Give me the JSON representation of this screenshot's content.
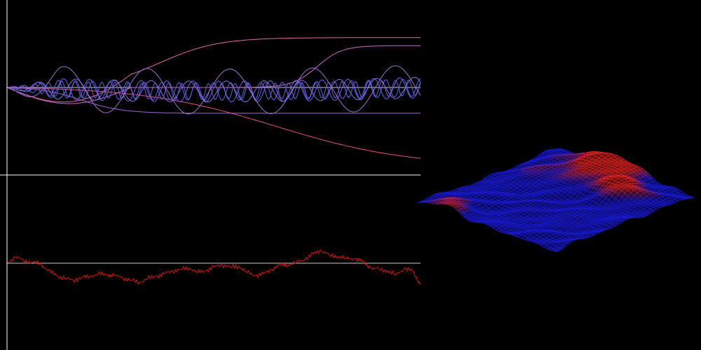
{
  "colors": {
    "background": "#000000",
    "axis": "#ffffff",
    "baseline": "#c8c8c8",
    "walk": "#dd1111",
    "surface_high": "#dd2222",
    "surface_low": "#1a1ad8"
  },
  "chart_data": [
    {
      "type": "line",
      "panel": "top-left",
      "grid": false,
      "legend": "none",
      "xlim": [
        0,
        1
      ],
      "ylim": [
        -1,
        1
      ],
      "baseline": 0,
      "series": [
        {
          "color": "#e06aa3",
          "shape": "rise",
          "amplitude": 0.62,
          "center": 0.37,
          "width": 0.07
        },
        {
          "color": "#cc66cc",
          "shape": "rise",
          "amplitude": 0.52,
          "center": 0.75,
          "width": 0.03
        },
        {
          "color": "#e0508a",
          "shape": "fall",
          "amplitude": -0.98,
          "center": 0.65,
          "width": 0.16
        },
        {
          "color": "#a060d8",
          "shape": "fall",
          "amplitude": -0.32,
          "center": 0.18,
          "width": 0.05
        },
        {
          "color": "#7060e8",
          "shape": "wave",
          "amplitude": 0.13,
          "frequency": 16,
          "phase": 0.4
        },
        {
          "color": "#5566ee",
          "shape": "wave",
          "amplitude": 0.11,
          "frequency": 24,
          "phase": 1.7
        },
        {
          "color": "#8070e0",
          "shape": "wave",
          "amplitude": 0.13,
          "frequency": 11,
          "phase": 2.6
        },
        {
          "color": "#6a5fd8",
          "shape": "wave",
          "amplitude": 0.1,
          "frequency": 31,
          "phase": 0.9
        },
        {
          "color": "#9a70d0",
          "shape": "wave",
          "amplitude": 0.28,
          "frequency": 5,
          "phase": 3.5
        }
      ]
    },
    {
      "type": "line",
      "panel": "bottom-left",
      "grid": false,
      "legend": "none",
      "xlim": [
        0,
        1
      ],
      "ylim": [
        -1,
        1
      ],
      "baseline": 0,
      "series": [
        {
          "color": "#dd1111",
          "x": [
            0,
            0.02,
            0.04,
            0.06,
            0.08,
            0.1,
            0.12,
            0.14,
            0.16,
            0.18,
            0.2,
            0.22,
            0.24,
            0.26,
            0.28,
            0.3,
            0.32,
            0.34,
            0.36,
            0.38,
            0.4,
            0.42,
            0.44,
            0.46,
            0.48,
            0.5,
            0.52,
            0.54,
            0.56,
            0.58,
            0.6,
            0.62,
            0.64,
            0.66,
            0.68,
            0.7,
            0.72,
            0.74,
            0.76,
            0.78,
            0.8,
            0.82,
            0.84,
            0.86,
            0.88,
            0.9,
            0.92,
            0.94,
            0.96,
            0.98,
            1.0
          ],
          "y": [
            0.0,
            0.08,
            0.04,
            0.01,
            0.0,
            -0.1,
            -0.16,
            -0.2,
            -0.22,
            -0.19,
            -0.17,
            -0.14,
            -0.15,
            -0.16,
            -0.19,
            -0.22,
            -0.25,
            -0.2,
            -0.17,
            -0.14,
            -0.1,
            -0.08,
            -0.06,
            -0.12,
            -0.1,
            -0.05,
            -0.02,
            -0.05,
            -0.04,
            -0.12,
            -0.16,
            -0.14,
            -0.08,
            -0.02,
            -0.02,
            0.01,
            0.05,
            0.12,
            0.17,
            0.1,
            0.09,
            0.06,
            0.06,
            0.02,
            -0.06,
            -0.08,
            -0.1,
            -0.15,
            -0.07,
            -0.1,
            -0.28
          ]
        }
      ]
    },
    {
      "type": "heatmap",
      "panel": "right",
      "projection": "isometric-surface",
      "legend": "none",
      "colormap": [
        "#1a1ad8",
        "#dd2222"
      ],
      "zlim": [
        0,
        1
      ]
    }
  ]
}
